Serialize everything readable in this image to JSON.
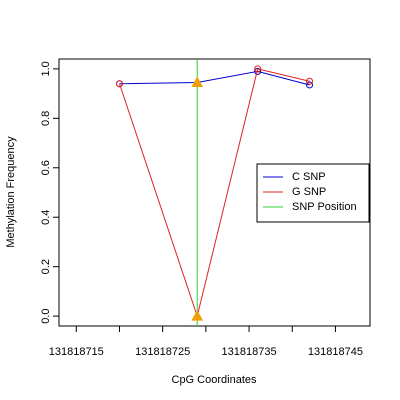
{
  "chart_data": {
    "type": "line",
    "xlabel": "CpG Coordinates",
    "ylabel": "Methylation Frequency",
    "xlim": [
      131818713,
      131818749
    ],
    "ylim": [
      -0.04,
      1.04
    ],
    "x_ticks": [
      131818715,
      131818725,
      131818735,
      131818745
    ],
    "x_tick_labels": [
      "131818715",
      "131818725",
      "131818735",
      "131818745"
    ],
    "y_ticks": [
      0.0,
      0.2,
      0.4,
      0.6,
      0.8,
      1.0
    ],
    "y_tick_labels": [
      "0.0",
      "0.2",
      "0.4",
      "0.6",
      "0.8",
      "1.0"
    ],
    "series": [
      {
        "name": "C SNP",
        "color": "#0000cc",
        "x": [
          131818720,
          131818729,
          131818736,
          131818742
        ],
        "y": [
          0.94,
          0.945,
          0.99,
          0.935
        ]
      },
      {
        "name": "G SNP",
        "color": "#dd2222",
        "x": [
          131818720,
          131818729,
          131818736,
          131818742
        ],
        "y": [
          0.94,
          0.0,
          1.0,
          0.95
        ]
      }
    ],
    "snp_position": {
      "name": "SNP Position",
      "x": 131818729,
      "color": "#33cc33"
    },
    "snp_markers": {
      "color": "#f0a000",
      "y": [
        0.945,
        0.0
      ]
    },
    "legend": {
      "placement": "right",
      "items": [
        {
          "label": "C SNP",
          "color": "#0000cc"
        },
        {
          "label": "G SNP",
          "color": "#dd2222"
        },
        {
          "label": "SNP Position",
          "color": "#33cc33"
        }
      ]
    },
    "grid": false
  }
}
